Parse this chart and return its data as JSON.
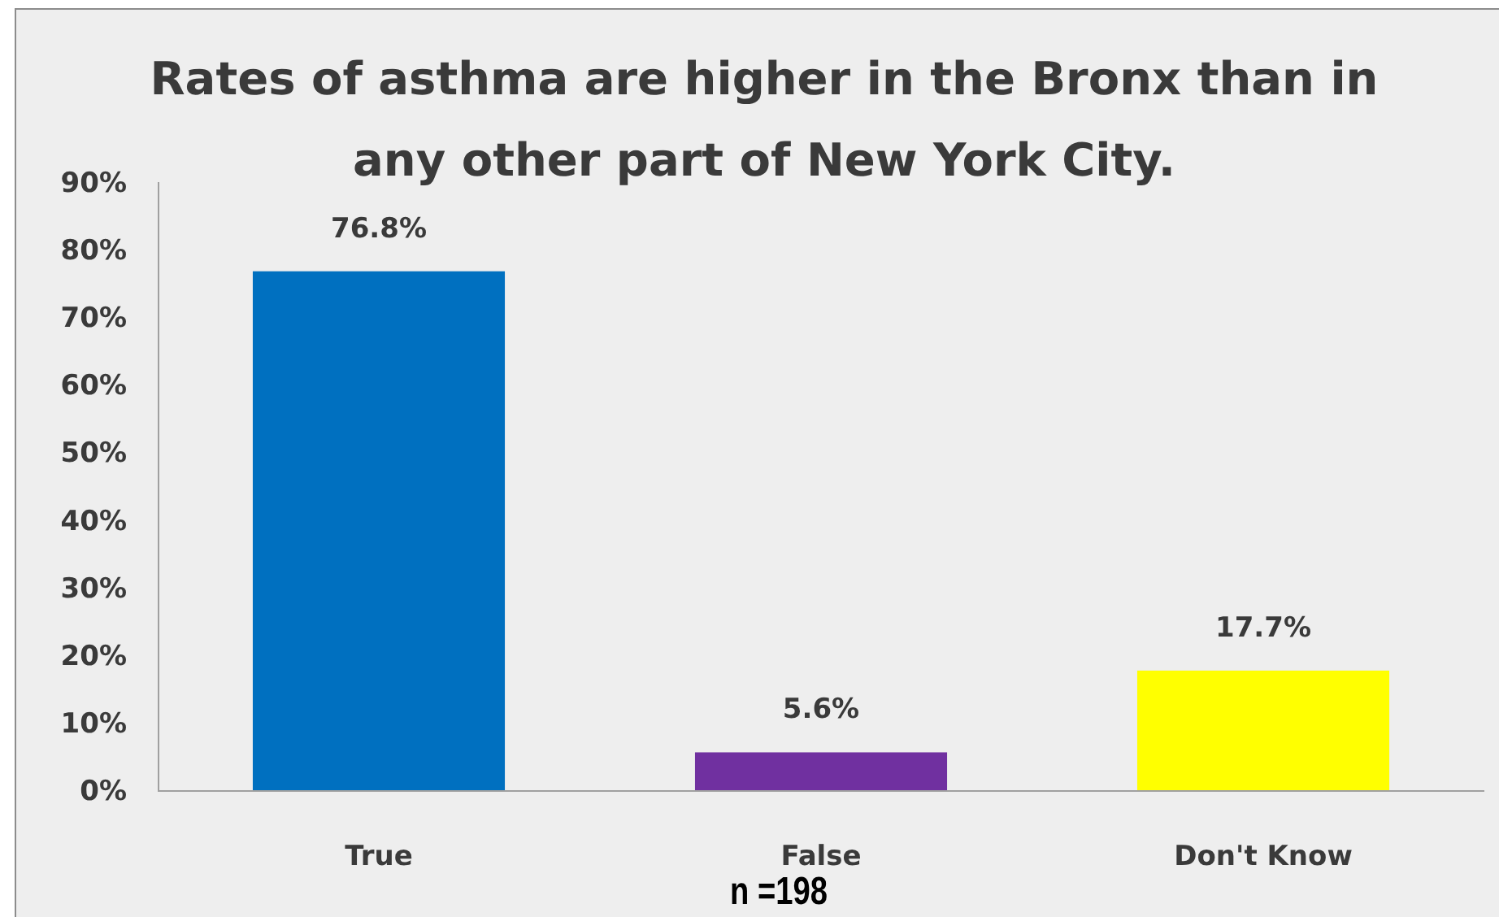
{
  "chart_data": {
    "type": "bar",
    "title": "Rates of asthma are higher in the Bronx than in any other part of New York City.",
    "categories": [
      "True",
      "False",
      "Don't Know"
    ],
    "values": [
      76.8,
      5.6,
      17.7
    ],
    "colors": [
      "#0070c0",
      "#7030a0",
      "#ffff00"
    ],
    "value_labels": [
      "76.8%",
      "5.6%",
      "17.7%"
    ],
    "ylim": [
      0,
      90
    ],
    "yticks": [
      {
        "value": 0,
        "label": "0%"
      },
      {
        "value": 10,
        "label": "10%"
      },
      {
        "value": 20,
        "label": "20%"
      },
      {
        "value": 30,
        "label": "30%"
      },
      {
        "value": 40,
        "label": "40%"
      },
      {
        "value": 50,
        "label": "50%"
      },
      {
        "value": 60,
        "label": "60%"
      },
      {
        "value": 70,
        "label": "70%"
      },
      {
        "value": 80,
        "label": "80%"
      },
      {
        "value": 90,
        "label": "90%"
      }
    ],
    "grid": false,
    "annotations": [
      "n =198"
    ]
  }
}
